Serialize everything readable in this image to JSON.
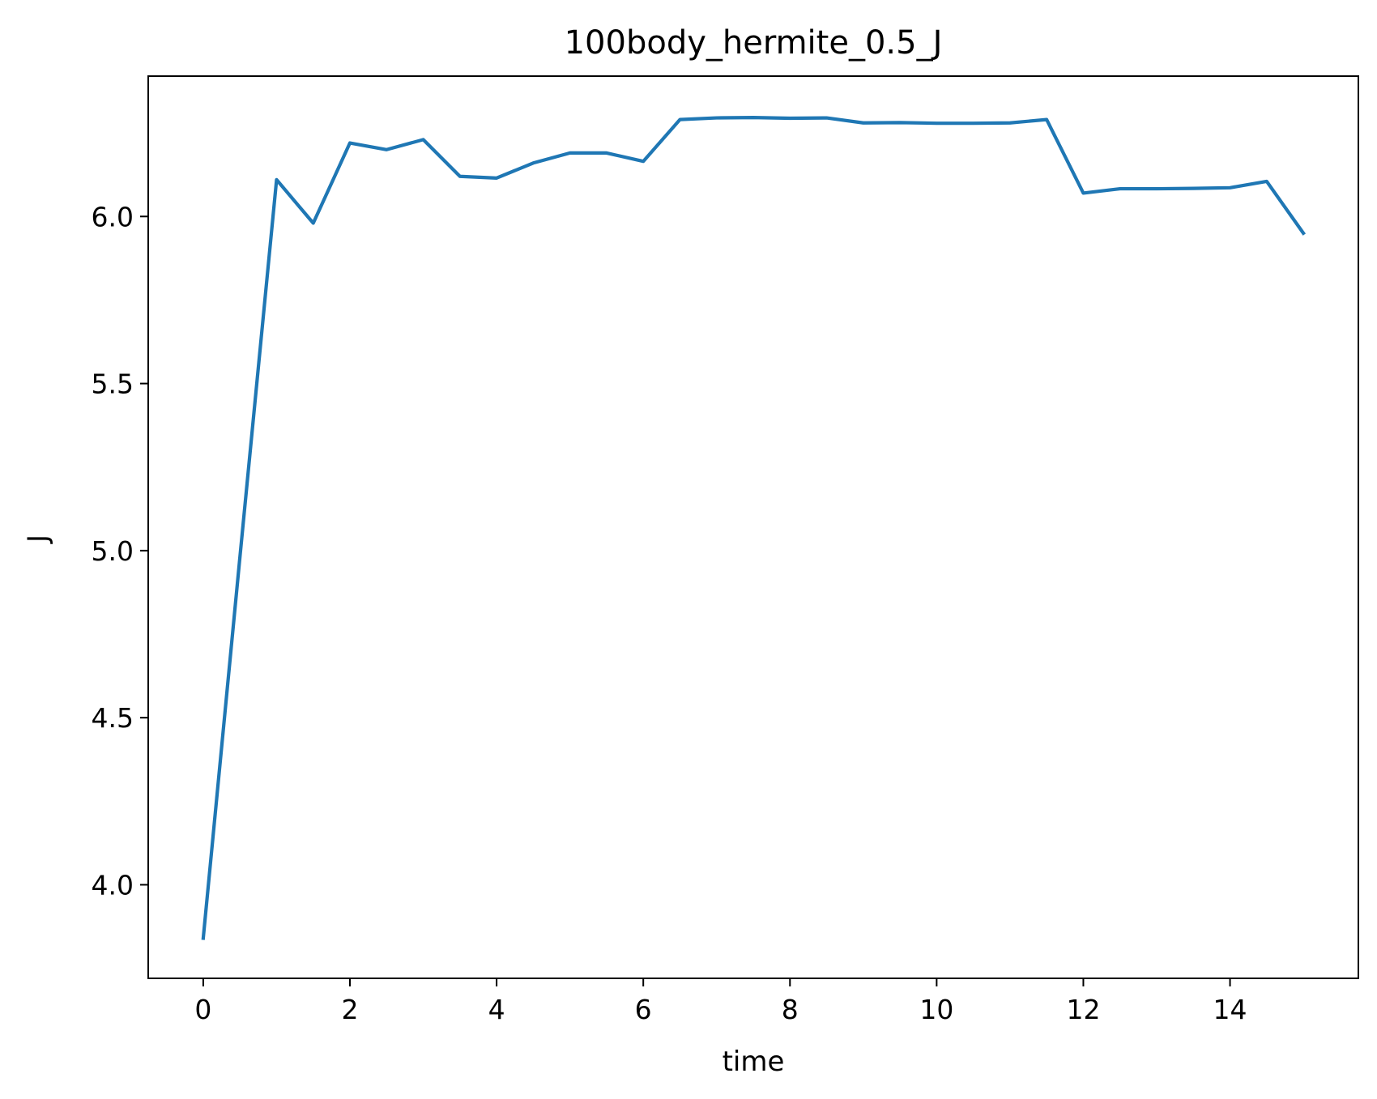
{
  "chart_data": {
    "type": "line",
    "title": "100body_hermite_0.5_J",
    "xlabel": "time",
    "ylabel": "J",
    "xlim": [
      -0.75,
      15.75
    ],
    "ylim": [
      3.72,
      6.42
    ],
    "grid": false,
    "x_ticks": [
      0,
      2,
      4,
      6,
      8,
      10,
      12,
      14
    ],
    "x_tick_labels": [
      "0",
      "2",
      "4",
      "6",
      "8",
      "10",
      "12",
      "14"
    ],
    "y_ticks": [
      4.0,
      4.5,
      5.0,
      5.5,
      6.0
    ],
    "y_tick_labels": [
      "4.0",
      "4.5",
      "5.0",
      "5.5",
      "6.0"
    ],
    "color": "#1f77b4",
    "series": [
      {
        "x": [
          0,
          0.5,
          1,
          1.5,
          2,
          2.5,
          3,
          3.5,
          4,
          4.5,
          5,
          5.5,
          6,
          6.5,
          7,
          7.5,
          8,
          8.5,
          9,
          9.5,
          10,
          10.5,
          11,
          11.5,
          12,
          12.5,
          13,
          13.5,
          14,
          14.5,
          15
        ],
        "y": [
          3.84,
          4.98,
          6.11,
          5.98,
          6.22,
          6.2,
          6.23,
          6.12,
          6.115,
          6.16,
          6.19,
          6.19,
          6.165,
          6.29,
          6.295,
          6.296,
          6.294,
          6.295,
          6.28,
          6.281,
          6.279,
          6.279,
          6.28,
          6.29,
          6.07,
          6.083,
          6.083,
          6.084,
          6.086,
          6.105,
          5.95
        ]
      }
    ]
  }
}
